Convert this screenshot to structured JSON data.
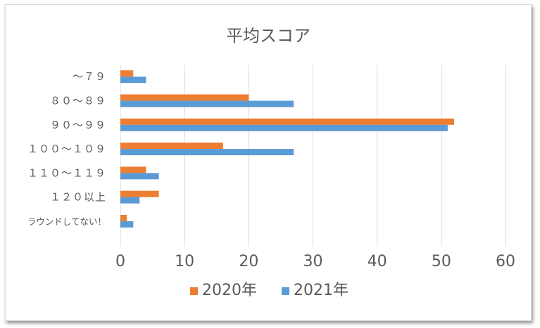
{
  "chart_data": {
    "type": "bar",
    "orientation": "horizontal",
    "title": "平均スコア",
    "categories": [
      "〜７９",
      "８０〜８９",
      "９０〜９９",
      "１００〜１０９",
      "１１０〜１１９",
      "１２０以上",
      "ラウンドしてない！"
    ],
    "series": [
      {
        "name": "2020年",
        "color": "#ed7d31",
        "values": [
          2,
          20,
          52,
          16,
          4,
          6,
          1
        ]
      },
      {
        "name": "2021年",
        "color": "#5b9bd5",
        "values": [
          4,
          27,
          51,
          27,
          6,
          3,
          2
        ]
      }
    ],
    "xlim": [
      0,
      60
    ],
    "xticks": [
      "0",
      "10",
      "20",
      "30",
      "40",
      "50",
      "60"
    ],
    "grid": true,
    "legend": "bottom",
    "xlabel": "",
    "ylabel": ""
  }
}
